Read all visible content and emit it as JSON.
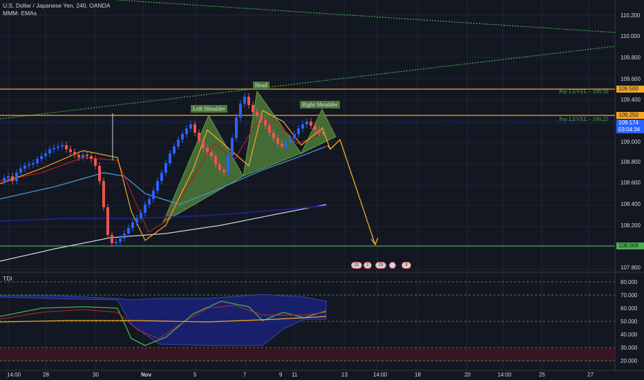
{
  "header": {
    "symbol": "U.S. Dollar / Japanese Yen, 240, OANDA",
    "indicator": "MMM- EMAs"
  },
  "patterns": {
    "left_shoulder": "Left Shoulder",
    "head": "Head",
    "right_shoulder": "Right Shoulder"
  },
  "levels": {
    "psy_upper": "Psy LEVEL - 109.50",
    "psy_lower": "Psy LEVEL - 109.25"
  },
  "price_axis": [
    "110.200",
    "110.000",
    "109.800",
    "109.600",
    "109.400",
    "109.200",
    "109.000",
    "108.800",
    "108.600",
    "108.400",
    "108.200",
    "107.800"
  ],
  "price_tags": {
    "p109500": "109.500",
    "p109250": "109.250",
    "current": "109.174",
    "countdown": "03:04:34",
    "p108006": "108.006"
  },
  "osc": {
    "title": "TDI",
    "axis": [
      "80.000",
      "70.000",
      "60.000",
      "50.000",
      "40.000",
      "30.000",
      "20.000"
    ]
  },
  "time_axis": [
    "14:00",
    "28",
    "30",
    "Nov",
    "5",
    "7",
    "9",
    "11",
    "13",
    "14:00",
    "18",
    "20",
    "14:00",
    "25",
    "27"
  ],
  "events": [
    "22",
    "2",
    "23",
    "3"
  ],
  "colors": {
    "background": "#131722",
    "orange_line": "#f9a825",
    "green_line": "#4caf50",
    "bull": "#2962ff",
    "bear": "#ef5350",
    "pattern_fill": "#4d7a3a"
  }
}
